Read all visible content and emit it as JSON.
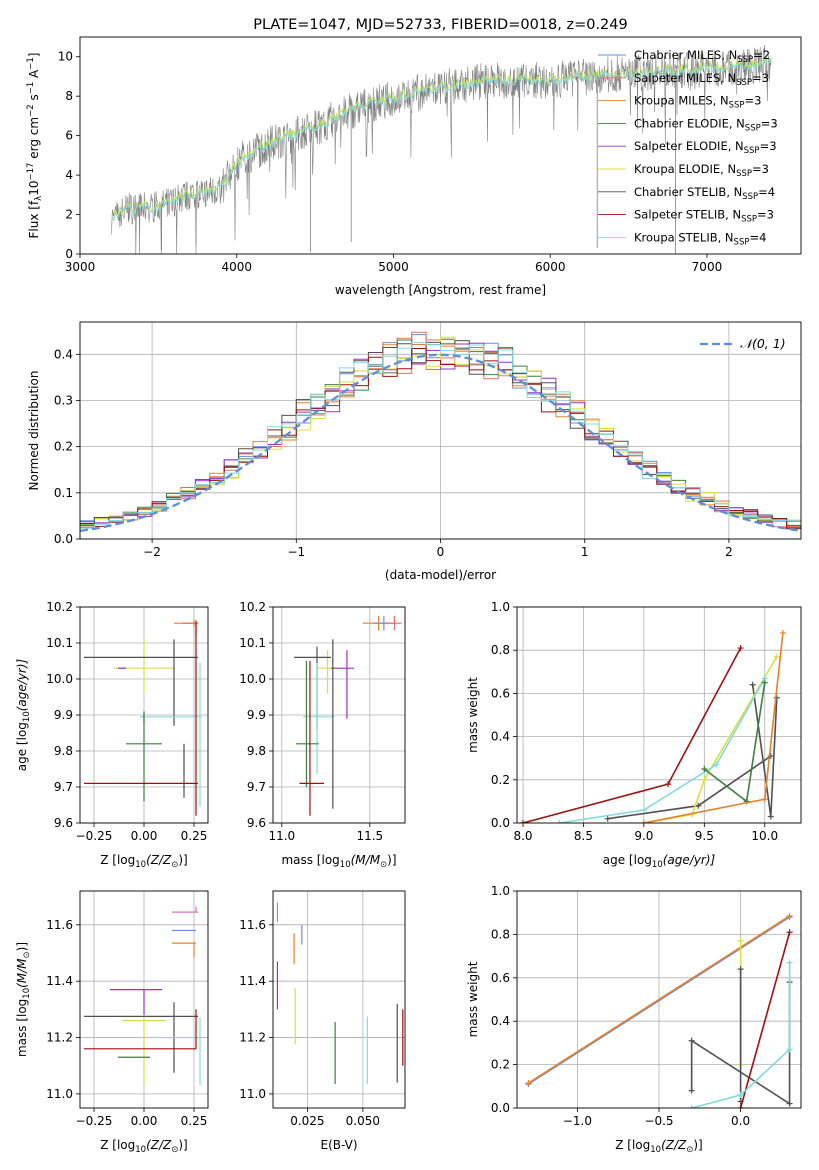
{
  "chart_data": [
    {
      "id": "spectrum",
      "type": "line",
      "title": "PLATE=1047, MJD=52733, FIBERID=0018, z=0.249",
      "xlabel": "wavelength [Angstrom, rest frame]",
      "ylabel": "Flux [f",
      "ylabel_parts": [
        "Flux [f",
        "λ",
        "10",
        "−17",
        " erg cm",
        "−2",
        " s",
        "−1",
        " A",
        "−1",
        "]"
      ],
      "xlim": [
        3000,
        7600
      ],
      "ylim": [
        0,
        11
      ],
      "xticks": [
        3000,
        4000,
        5000,
        6000,
        7000
      ],
      "yticks": [
        0,
        2,
        4,
        6,
        8,
        10
      ],
      "grid": false,
      "legend_loc": "upper-right",
      "legend": [
        {
          "label": "Chabrier MILES, N",
          "n": "2",
          "color": "#6a8fd8"
        },
        {
          "label": "Salpeter MILES, N",
          "n": "3",
          "color": "#e07060"
        },
        {
          "label": "Kroupa MILES, N",
          "n": "3",
          "color": "#e8812a"
        },
        {
          "label": "Chabrier ELODIE, N",
          "n": "3",
          "color": "#3f7f3f"
        },
        {
          "label": "Salpeter ELODIE, N",
          "n": "3",
          "color": "#9a30c8"
        },
        {
          "label": "Kroupa ELODIE, N",
          "n": "3",
          "color": "#d8e040"
        },
        {
          "label": "Chabrier STELIB, N",
          "n": "4",
          "color": "#505050"
        },
        {
          "label": "Salpeter STELIB, N",
          "n": "3",
          "color": "#a01010"
        },
        {
          "label": "Kroupa STELIB, N",
          "n": "4",
          "color": "#80dcdc"
        }
      ],
      "legend_sub": "SSP",
      "data_color": "#808080",
      "continuum": {
        "x": [
          3200,
          3300,
          3500,
          3700,
          3900,
          4000,
          4200,
          4500,
          4800,
          5000,
          5300,
          5600,
          6000,
          6400,
          6800,
          7200,
          7400
        ],
        "y": [
          1.8,
          2.3,
          2.4,
          3.0,
          3.3,
          4.6,
          5.6,
          6.4,
          7.5,
          7.9,
          8.4,
          8.8,
          8.8,
          9.1,
          9.3,
          9.5,
          9.7
        ]
      }
    },
    {
      "id": "residuals",
      "type": "histogram",
      "xlabel": "(data-model)/error",
      "ylabel": "Normed distribution",
      "xlim": [
        -2.5,
        2.5
      ],
      "ylim": [
        0,
        0.47
      ],
      "xticks": [
        -2,
        -1,
        0,
        1,
        2
      ],
      "yticks": [
        0.0,
        0.1,
        0.2,
        0.3,
        0.4
      ],
      "grid": true,
      "legend_loc": "upper-right",
      "legend_label": "𝒩(0, 1)",
      "gauss_color": "#5b8fd8",
      "bin_width": 0.1,
      "hist_colors": [
        "#6a8fd8",
        "#e07060",
        "#e8812a",
        "#3f7f3f",
        "#9a30c8",
        "#d8e040",
        "#505050",
        "#a01010",
        "#80dcdc"
      ]
    },
    {
      "id": "age-vs-Z",
      "type": "errorbar",
      "xlabel": "Z [log",
      "xlabel_parts": [
        "Z [log",
        "10",
        "(Z/Z",
        "⊙",
        ")]"
      ],
      "ylabel_parts": [
        "age  [log",
        "10",
        "(age/yr)]"
      ],
      "xlim": [
        -0.32,
        0.32
      ],
      "ylim": [
        9.6,
        10.2
      ],
      "xticks": [
        -0.25,
        0.0,
        0.25
      ],
      "xticklabels": [
        "−0.25",
        "0.00",
        "0.25"
      ],
      "yticks": [
        9.6,
        9.7,
        9.8,
        9.9,
        10.0,
        10.1,
        10.2
      ],
      "grid": true,
      "points": [
        {
          "x": 0.25,
          "y": 10.155,
          "xerr": [
            0.1,
            0.02
          ],
          "yerr": [
            0.01,
            0.01
          ],
          "color": "#e8812a"
        },
        {
          "x": 0.26,
          "y": 10.155,
          "xerr": [
            0.07,
            0.01
          ],
          "yerr": [
            0.04,
            0.01
          ],
          "color": "#e07060"
        },
        {
          "x": 0.0,
          "y": 10.03,
          "xerr": [
            0.15,
            0.15
          ],
          "yerr": [
            0.07,
            0.08
          ],
          "color": "#d8e040"
        },
        {
          "x": -0.1,
          "y": 10.03,
          "xerr": [
            0.03,
            0.01
          ],
          "yerr": [
            0.0,
            0.0
          ],
          "color": "#9a30c8"
        },
        {
          "x": 0.15,
          "y": 10.06,
          "xerr": [
            0.45,
            0.12
          ],
          "yerr": [
            0.19,
            0.05
          ],
          "color": "#505050"
        },
        {
          "x": 0.0,
          "y": 9.895,
          "xerr": [
            0.01,
            0.0
          ],
          "yerr": [
            0.02,
            0.01
          ],
          "color": "#9a30c8"
        },
        {
          "x": 0.13,
          "y": 9.895,
          "xerr": [
            0.15,
            0.15
          ],
          "yerr": [
            0.0,
            0.0
          ],
          "color": "#80dcdc"
        },
        {
          "x": 0.28,
          "y": 9.895,
          "xerr": [
            0.0,
            0.01
          ],
          "yerr": [
            0.25,
            0.15
          ],
          "color": "#80dcdc"
        },
        {
          "x": 0.0,
          "y": 9.82,
          "xerr": [
            0.09,
            0.09
          ],
          "yerr": [
            0.16,
            0.09
          ],
          "color": "#3f7f3f"
        },
        {
          "x": 0.2,
          "y": 9.82,
          "xerr": [
            0.0,
            0.0
          ],
          "yerr": [
            0.15,
            0.0
          ],
          "color": "#505050"
        },
        {
          "x": 0.0,
          "y": 9.71,
          "xerr": [
            0.3,
            0.27
          ],
          "yerr": [
            0.0,
            0.0
          ],
          "color": "#a01010"
        },
        {
          "x": 0.26,
          "y": 9.71,
          "xerr": [
            0.0,
            0.0
          ],
          "yerr": [
            0.09,
            0.45
          ],
          "color": "#a01010"
        }
      ]
    },
    {
      "id": "age-vs-mass",
      "type": "errorbar",
      "xlabel_parts": [
        "mass [log",
        "10",
        "(M/M",
        "⊙",
        ")]"
      ],
      "xlim": [
        10.95,
        11.7
      ],
      "ylim": [
        9.6,
        10.2
      ],
      "xticks": [
        11.0,
        11.5
      ],
      "xticklabels": [
        "11.0",
        "11.5"
      ],
      "yticks": [
        9.6,
        9.7,
        9.8,
        9.9,
        10.0,
        10.1,
        10.2
      ],
      "grid": true,
      "points": [
        {
          "x": 11.55,
          "y": 10.155,
          "xerr": [
            0.09,
            0.06
          ],
          "yerr": [
            0.02,
            0.02
          ],
          "color": "#e8812a"
        },
        {
          "x": 11.58,
          "y": 10.155,
          "xerr": [
            0.06,
            0.06
          ],
          "yerr": [
            0.02,
            0.02
          ],
          "color": "#6a8fd8"
        },
        {
          "x": 11.64,
          "y": 10.155,
          "xerr": [
            0.05,
            0.04
          ],
          "yerr": [
            0.02,
            0.02
          ],
          "color": "#e07070"
        },
        {
          "x": 11.26,
          "y": 10.03,
          "xerr": [
            0.06,
            0.06
          ],
          "yerr": [
            0.07,
            0.05
          ],
          "color": "#d8e040"
        },
        {
          "x": 11.37,
          "y": 10.03,
          "xerr": [
            0.09,
            0.04
          ],
          "yerr": [
            0.14,
            0.05
          ],
          "color": "#9a30c8"
        },
        {
          "x": 11.2,
          "y": 10.06,
          "xerr": [
            0.13,
            0.08
          ],
          "yerr": [
            0.2,
            0.03
          ],
          "color": "#505050"
        },
        {
          "x": 11.2,
          "y": 9.895,
          "xerr": [
            0.08,
            0.1
          ],
          "yerr": [
            0.16,
            0.15
          ],
          "color": "#80dcdc"
        },
        {
          "x": 11.14,
          "y": 9.82,
          "xerr": [
            0.06,
            0.07
          ],
          "yerr": [
            0.12,
            0.23
          ],
          "color": "#3f7f3f"
        },
        {
          "x": 11.29,
          "y": 9.82,
          "xerr": [
            0.0,
            0.0
          ],
          "yerr": [
            0.18,
            0.29
          ],
          "color": "#505050"
        },
        {
          "x": 11.16,
          "y": 9.71,
          "xerr": [
            0.06,
            0.08
          ],
          "yerr": [
            0.09,
            0.34
          ],
          "color": "#a01010"
        }
      ]
    },
    {
      "id": "weight-vs-age",
      "type": "line",
      "xlabel_parts": [
        "age  [log",
        "10",
        "(age/yr)]"
      ],
      "ylabel": "mass weight",
      "xlim": [
        7.95,
        10.3
      ],
      "ylim": [
        0,
        1
      ],
      "xticks": [
        8.0,
        8.5,
        9.0,
        9.5,
        10.0
      ],
      "xticklabels": [
        "8.0",
        "8.5",
        "9.0",
        "9.5",
        "10.0"
      ],
      "yticks": [
        0.0,
        0.2,
        0.4,
        0.6,
        0.8,
        1.0
      ],
      "yticklabels": [
        "0.0",
        "0.2",
        "0.4",
        "0.6",
        "0.8",
        "1.0"
      ],
      "grid": true,
      "series": [
        {
          "color": "#a01010",
          "x": [
            8.0,
            9.2,
            9.8
          ],
          "y": [
            0.0,
            0.18,
            0.81
          ]
        },
        {
          "color": "#505050",
          "x": [
            8.7,
            9.45,
            10.05
          ],
          "y": [
            0.02,
            0.08,
            0.31
          ]
        },
        {
          "color": "#505050",
          "x": [
            9.9,
            10.05,
            10.1
          ],
          "y": [
            0.64,
            0.03,
            0.58
          ]
        },
        {
          "color": "#d8e040",
          "x": [
            9.0,
            9.4,
            9.5,
            10.1
          ],
          "y": [
            0.0,
            0.04,
            0.2,
            0.77
          ]
        },
        {
          "color": "#80dcdc",
          "x": [
            8.3,
            9.0,
            9.6,
            10.0
          ],
          "y": [
            0.0,
            0.06,
            0.27,
            0.67
          ]
        },
        {
          "color": "#3f7f3f",
          "x": [
            9.5,
            9.85,
            10.0
          ],
          "y": [
            0.25,
            0.1,
            0.65
          ]
        },
        {
          "color": "#e8812a",
          "x": [
            9.0,
            10.0,
            10.15
          ],
          "y": [
            0.0,
            0.11,
            0.88
          ]
        }
      ]
    },
    {
      "id": "mass-vs-Z",
      "type": "errorbar",
      "xlabel_parts": [
        "Z [log",
        "10",
        "(Z/Z",
        "⊙",
        ")]"
      ],
      "ylabel_parts": [
        "mass [log",
        "10",
        "(M/M",
        "⊙",
        ")]"
      ],
      "xlim": [
        -0.32,
        0.32
      ],
      "ylim": [
        10.95,
        11.72
      ],
      "xticks": [
        -0.25,
        0.0,
        0.25
      ],
      "xticklabels": [
        "−0.25",
        "0.00",
        "0.25"
      ],
      "yticks": [
        11.0,
        11.2,
        11.4,
        11.6
      ],
      "yticklabels": [
        "11.0",
        "11.2",
        "11.4",
        "11.6"
      ],
      "grid": true,
      "points": [
        {
          "x": 0.26,
          "y": 11.645,
          "xerr": [
            0.12,
            0.01
          ],
          "yerr": [
            0.0,
            0.02
          ],
          "color": "#e070c0"
        },
        {
          "x": 0.26,
          "y": 11.58,
          "xerr": [
            0.12,
            0.0
          ],
          "yerr": [
            0.0,
            0.0
          ],
          "color": "#6a8fd8"
        },
        {
          "x": 0.25,
          "y": 11.535,
          "xerr": [
            0.11,
            0.01
          ],
          "yerr": [
            0.05,
            0.0
          ],
          "color": "#e8812a"
        },
        {
          "x": 0.0,
          "y": 11.37,
          "xerr": [
            0.17,
            0.09
          ],
          "yerr": [
            0.09,
            0.0
          ],
          "color": "#9a30c8"
        },
        {
          "x": 0.15,
          "y": 11.275,
          "xerr": [
            0.45,
            0.12
          ],
          "yerr": [
            0.2,
            0.05
          ],
          "color": "#505050"
        },
        {
          "x": 0.0,
          "y": 11.26,
          "xerr": [
            0.11,
            0.11
          ],
          "yerr": [
            0.23,
            0.0
          ],
          "color": "#d8e040"
        },
        {
          "x": 0.2,
          "y": 11.2,
          "xerr": [
            0.14,
            0.05
          ],
          "yerr": [
            0.0,
            0.0
          ],
          "color": "#80dcdc"
        },
        {
          "x": 0.28,
          "y": 11.2,
          "xerr": [
            0.0,
            0.0
          ],
          "yerr": [
            0.17,
            0.07
          ],
          "color": "#80dcdc"
        },
        {
          "x": 0.0,
          "y": 11.16,
          "xerr": [
            0.3,
            0.26
          ],
          "yerr": [
            0.0,
            0.0
          ],
          "color": "#a01010"
        },
        {
          "x": 0.26,
          "y": 11.16,
          "xerr": [
            0.0,
            0.0
          ],
          "yerr": [
            0.0,
            0.14
          ],
          "color": "#a01010"
        },
        {
          "x": -0.05,
          "y": 11.13,
          "xerr": [
            0.08,
            0.08
          ],
          "yerr": [
            0.0,
            0.0
          ],
          "color": "#3f7f3f"
        }
      ]
    },
    {
      "id": "mass-vs-ebv",
      "type": "errorbar",
      "xlabel": "E(B-V)",
      "xlim": [
        0.0095,
        0.069
      ],
      "ylim": [
        10.95,
        11.72
      ],
      "xticks": [
        0.025,
        0.05
      ],
      "xticklabels": [
        "0.025",
        "0.050"
      ],
      "yticks": [
        11.0,
        11.2,
        11.4,
        11.6
      ],
      "yticklabels": [
        "11.0",
        "11.2",
        "11.4",
        "11.6"
      ],
      "grid": true,
      "points": [
        {
          "x": 0.0115,
          "y": 11.645,
          "xerr": [
            0,
            0
          ],
          "yerr": [
            0.035,
            0.035
          ],
          "color": "#e070c0"
        },
        {
          "x": 0.0115,
          "y": 11.39,
          "xerr": [
            0,
            0
          ],
          "yerr": [
            0.09,
            0.08
          ],
          "color": "#9a30c8"
        },
        {
          "x": 0.019,
          "y": 11.53,
          "xerr": [
            0,
            0
          ],
          "yerr": [
            0.07,
            0.04
          ],
          "color": "#e8812a"
        },
        {
          "x": 0.0225,
          "y": 11.58,
          "xerr": [
            0,
            0
          ],
          "yerr": [
            0.05,
            0.02
          ],
          "color": "#6a8fd8"
        },
        {
          "x": 0.0195,
          "y": 11.275,
          "xerr": [
            0,
            0
          ],
          "yerr": [
            0.1,
            0.1
          ],
          "color": "#d8e040"
        },
        {
          "x": 0.0375,
          "y": 11.145,
          "xerr": [
            0,
            0
          ],
          "yerr": [
            0.11,
            0.11
          ],
          "color": "#3f7f3f"
        },
        {
          "x": 0.052,
          "y": 11.155,
          "xerr": [
            0,
            0
          ],
          "yerr": [
            0.12,
            0.12
          ],
          "color": "#80dcdc"
        },
        {
          "x": 0.0655,
          "y": 11.18,
          "xerr": [
            0,
            0
          ],
          "yerr": [
            0.14,
            0.14
          ],
          "color": "#505050"
        },
        {
          "x": 0.068,
          "y": 11.2,
          "xerr": [
            0,
            0
          ],
          "yerr": [
            0.1,
            0.1
          ],
          "color": "#a01010"
        }
      ]
    },
    {
      "id": "weight-vs-Z",
      "type": "line",
      "xlabel_parts": [
        "Z [log",
        "10",
        "(Z/Z",
        "⊙",
        ")]"
      ],
      "ylabel": "mass weight",
      "xlim": [
        -1.37,
        0.37
      ],
      "ylim": [
        0,
        1
      ],
      "xticks": [
        -1.0,
        -0.5,
        0.0
      ],
      "xticklabels": [
        "−1.0",
        "−0.5",
        "0.0"
      ],
      "yticks": [
        0.0,
        0.2,
        0.4,
        0.6,
        0.8,
        1.0
      ],
      "yticklabels": [
        "0.0",
        "0.2",
        "0.4",
        "0.6",
        "0.8",
        "1.0"
      ],
      "grid": true,
      "series": [
        {
          "color": "#6a8fd8",
          "x": [
            -1.3,
            0.3
          ],
          "y": [
            0.11,
            0.88
          ]
        },
        {
          "color": "#e8812a",
          "x": [
            -1.3,
            0.3
          ],
          "y": [
            0.115,
            0.885
          ]
        },
        {
          "color": "#505050",
          "x": [
            -0.3,
            -0.3,
            0.3,
            0.3
          ],
          "y": [
            0.08,
            0.31,
            0.02,
            0.58
          ]
        },
        {
          "color": "#d8e040",
          "x": [
            0.0,
            0.0
          ],
          "y": [
            0.77,
            0.2
          ]
        },
        {
          "color": "#505050",
          "x": [
            0.0,
            0.0
          ],
          "y": [
            0.64,
            0.03
          ]
        },
        {
          "color": "#a01010",
          "x": [
            0.0,
            0.3
          ],
          "y": [
            0.0,
            0.81
          ]
        },
        {
          "color": "#80dcdc",
          "x": [
            -0.3,
            0.0,
            0.3,
            0.3
          ],
          "y": [
            0.0,
            0.06,
            0.27,
            0.67
          ]
        }
      ]
    }
  ]
}
